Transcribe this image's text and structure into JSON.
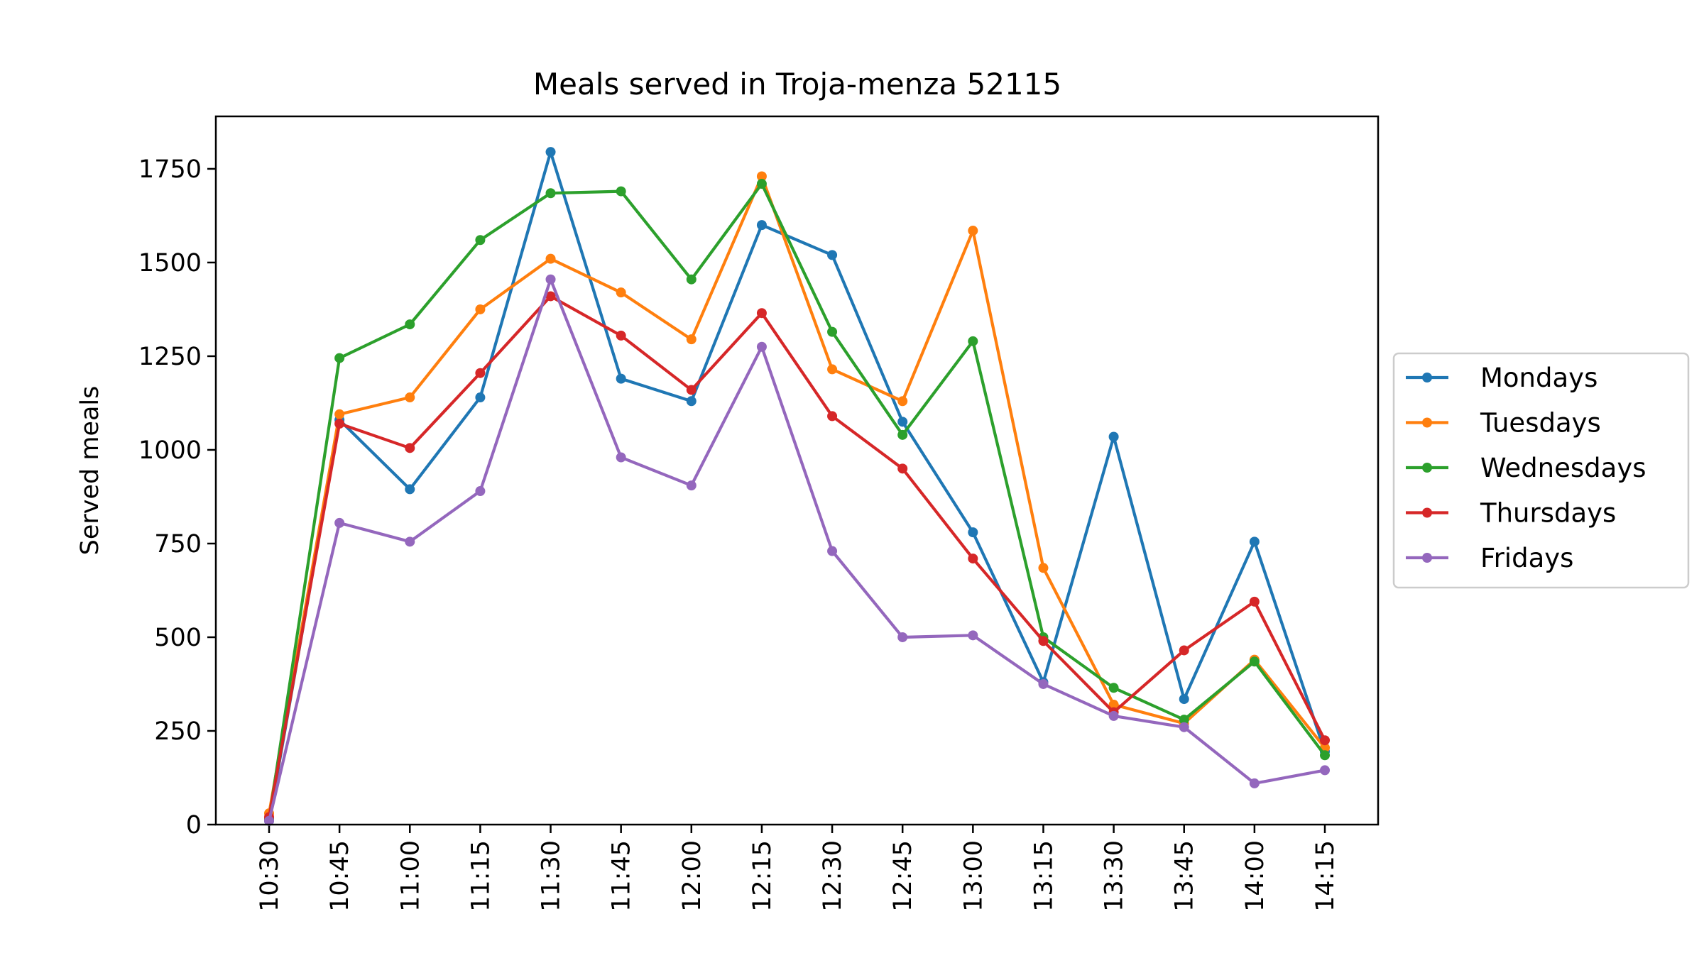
{
  "chart_data": {
    "type": "line",
    "title": "Meals served in Troja-menza 52115",
    "xlabel": "",
    "ylabel": "Served meals",
    "x": [
      "10:30",
      "10:45",
      "11:00",
      "11:15",
      "11:30",
      "11:45",
      "12:00",
      "12:15",
      "12:30",
      "12:45",
      "13:00",
      "13:15",
      "13:30",
      "13:45",
      "14:00",
      "14:15"
    ],
    "ylim": [
      0,
      1890
    ],
    "yticks": [
      0,
      250,
      500,
      750,
      1000,
      1250,
      1500,
      1750
    ],
    "grid": false,
    "legend_position": "right, outside plot",
    "series": [
      {
        "name": "Mondays",
        "color": "#1f77b4",
        "values": [
          10,
          1080,
          895,
          1140,
          1795,
          1190,
          1130,
          1600,
          1520,
          1075,
          780,
          380,
          1035,
          335,
          755,
          195
        ]
      },
      {
        "name": "Tuesdays",
        "color": "#ff7f0e",
        "values": [
          30,
          1095,
          1140,
          1375,
          1510,
          1420,
          1295,
          1730,
          1215,
          1130,
          1585,
          685,
          320,
          270,
          440,
          205
        ]
      },
      {
        "name": "Wednesdays",
        "color": "#2ca02c",
        "values": [
          15,
          1245,
          1335,
          1560,
          1685,
          1690,
          1455,
          1710,
          1315,
          1040,
          1290,
          500,
          365,
          280,
          435,
          185
        ]
      },
      {
        "name": "Thursdays",
        "color": "#d62728",
        "values": [
          20,
          1070,
          1005,
          1205,
          1410,
          1305,
          1160,
          1365,
          1090,
          950,
          710,
          490,
          300,
          465,
          595,
          225
        ]
      },
      {
        "name": "Fridays",
        "color": "#9467bd",
        "values": [
          10,
          805,
          755,
          890,
          1455,
          980,
          905,
          1275,
          730,
          500,
          505,
          375,
          290,
          260,
          110,
          145
        ]
      }
    ]
  }
}
